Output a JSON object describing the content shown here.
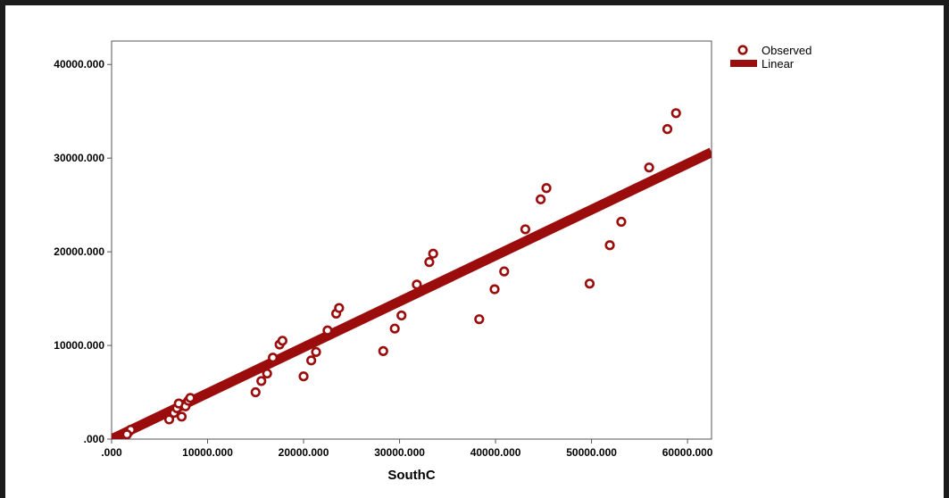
{
  "chart_data": {
    "type": "scatter",
    "xlabel": "SouthC",
    "ylabel": "",
    "xlim": [
      0,
      62500
    ],
    "ylim": [
      0,
      42500
    ],
    "x_ticks": [
      0,
      10000,
      20000,
      30000,
      40000,
      50000,
      60000
    ],
    "y_ticks": [
      0,
      10000,
      20000,
      30000,
      40000
    ],
    "x_tick_labels": [
      ".000",
      "10000.000",
      "20000.000",
      "30000.000",
      "40000.000",
      "50000.000",
      "60000.000"
    ],
    "y_tick_labels": [
      ".000",
      "10000.000",
      "20000.000",
      "30000.000",
      "40000.000"
    ],
    "grid": false,
    "legend_position": "top-right",
    "legend": [
      {
        "label": "Observed",
        "marker": "open-circle"
      },
      {
        "label": "Linear",
        "marker": "thick-line"
      }
    ],
    "color": "#9b0d0d",
    "series": [
      {
        "name": "Observed",
        "kind": "points",
        "points": [
          [
            1800,
            800
          ],
          [
            2000,
            1000
          ],
          [
            1600,
            500
          ],
          [
            6000,
            2100
          ],
          [
            6500,
            2800
          ],
          [
            6800,
            3300
          ],
          [
            7000,
            3800
          ],
          [
            7300,
            2400
          ],
          [
            7700,
            3500
          ],
          [
            8000,
            4100
          ],
          [
            8200,
            4400
          ],
          [
            15000,
            5000
          ],
          [
            15600,
            6200
          ],
          [
            16200,
            7000
          ],
          [
            16800,
            8700
          ],
          [
            17500,
            10100
          ],
          [
            17800,
            10500
          ],
          [
            20000,
            6700
          ],
          [
            20800,
            8400
          ],
          [
            21300,
            9300
          ],
          [
            22500,
            11600
          ],
          [
            23400,
            13400
          ],
          [
            23700,
            14000
          ],
          [
            28300,
            9400
          ],
          [
            29500,
            11800
          ],
          [
            30200,
            13200
          ],
          [
            31800,
            16500
          ],
          [
            33100,
            18900
          ],
          [
            33500,
            19800
          ],
          [
            38300,
            12800
          ],
          [
            39900,
            16000
          ],
          [
            40900,
            17900
          ],
          [
            43100,
            22400
          ],
          [
            44700,
            25600
          ],
          [
            45300,
            26800
          ],
          [
            49800,
            16600
          ],
          [
            51900,
            20700
          ],
          [
            53100,
            23200
          ],
          [
            56000,
            29000
          ],
          [
            57900,
            33100
          ],
          [
            58800,
            34800
          ]
        ]
      },
      {
        "name": "Linear",
        "kind": "line",
        "intercept": 0,
        "slope": 0.49,
        "x_range": [
          0,
          62500
        ]
      }
    ]
  }
}
